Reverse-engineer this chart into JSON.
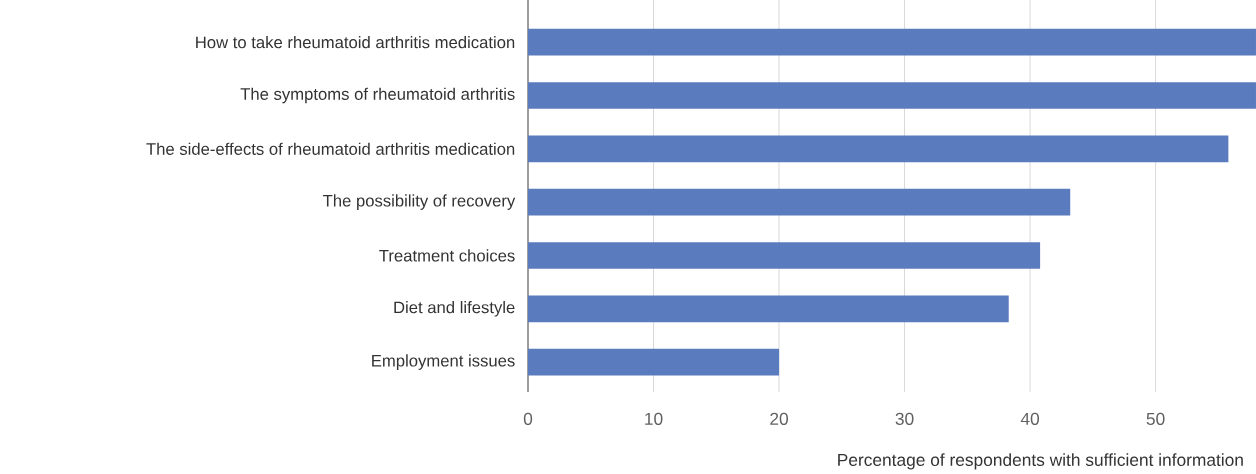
{
  "chart_data": {
    "type": "bar",
    "orientation": "horizontal",
    "xlabel": "Percentage of respondents with sufficient information",
    "categories": [
      "How to take rheumatoid arthritis medication",
      "The symptoms of rheumatoid arthritis",
      "The side-effects of rheumatoid arthritis medication",
      "The possibility of recovery",
      "Treatment choices",
      "Diet and lifestyle",
      "Employment issues"
    ],
    "values": [
      58,
      58,
      55.8,
      43.2,
      40.8,
      38.3,
      20
    ],
    "color": "#5b7bbf",
    "xlim": [
      0,
      58
    ],
    "xticks": [
      0,
      10,
      20,
      30,
      40,
      50
    ],
    "grid": "x"
  }
}
